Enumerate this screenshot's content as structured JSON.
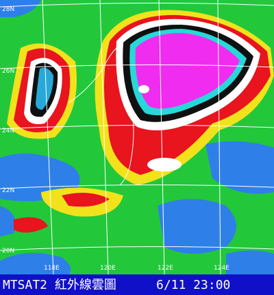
{
  "map": {
    "latitude_labels": [
      "28N",
      "26N",
      "24N",
      "22N",
      "20N"
    ],
    "longitude_labels": [
      "118E",
      "120E",
      "122E",
      "124E"
    ],
    "banner": {
      "product": "MTSAT2 紅外線雲圖",
      "time": "6/11 23:00"
    }
  }
}
